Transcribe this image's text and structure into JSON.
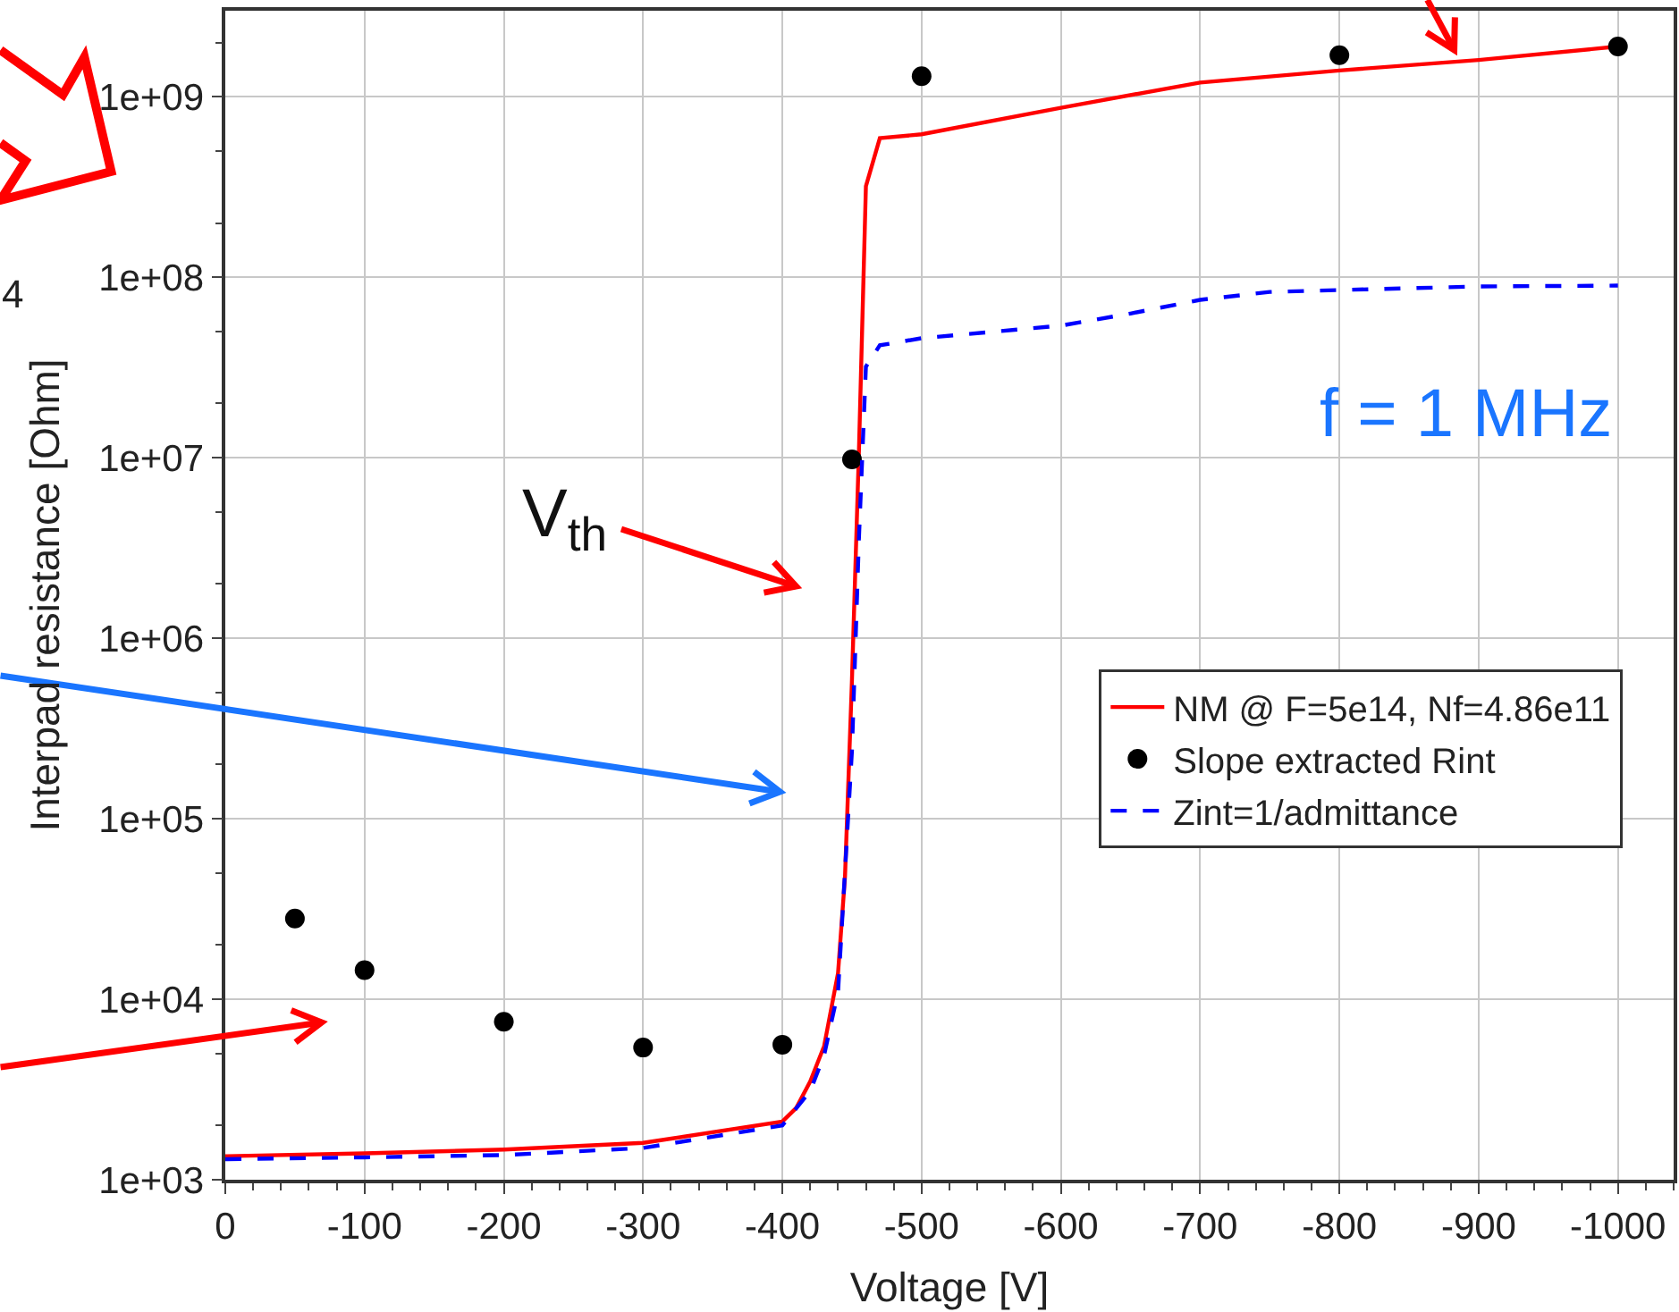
{
  "chart_data": {
    "type": "line",
    "xlabel": "Voltage [V]",
    "ylabel": "Interpad resistance [Ohm]",
    "xlim": [
      0,
      -1040
    ],
    "xticks": [
      0,
      -100,
      -200,
      -300,
      -400,
      -500,
      -600,
      -700,
      -800,
      -900,
      -1000
    ],
    "ylim": [
      1000,
      3000000000
    ],
    "log": "y",
    "yticks": [
      {
        "value": 1000,
        "label": "1e+03"
      },
      {
        "value": 10000,
        "label": "1e+04"
      },
      {
        "value": 100000,
        "label": "1e+05"
      },
      {
        "value": 1000000,
        "label": "1e+06"
      },
      {
        "value": 10000000,
        "label": "1e+07"
      },
      {
        "value": 100000000,
        "label": "1e+08"
      },
      {
        "value": 1000000000,
        "label": "1e+09"
      }
    ],
    "grid": true,
    "legend": "right",
    "annotations": [
      "f = 1 MHz",
      "V$_{th}$",
      "4"
    ],
    "series": [
      {
        "name": "NM @ F=5e14, Nf=4.86e11",
        "color": "#ff0000",
        "line_style": "solid",
        "marker": "none",
        "x": [
          0,
          -100,
          -200,
          -300,
          -400,
          -410,
          -420,
          -430,
          -440,
          -445,
          -450,
          -455,
          -460,
          -470,
          -500,
          -600,
          -700,
          -800,
          -900,
          -1000
        ],
        "values": [
          1350,
          1400,
          1470,
          1600,
          2100,
          2500,
          3500,
          5500,
          14000,
          48000,
          590000,
          11000000,
          320000000,
          590000000,
          620000000,
          870000000,
          1200000000,
          1400000000,
          1600000000,
          1900000000
        ]
      },
      {
        "name": "Slope extracted Rint",
        "type": "scatter",
        "color": "#000000",
        "marker": "circle",
        "x": [
          -50,
          -100,
          -200,
          -300,
          -400,
          -450,
          -500,
          -800,
          -1000
        ],
        "values": [
          28000,
          14500,
          7500,
          5400,
          5600,
          9800000,
          1300000000,
          1700000000,
          1900000000
        ]
      },
      {
        "name": "Zint=1/admittance",
        "color": "#0000ff",
        "line_style": "dashed",
        "marker": "none",
        "x": [
          0,
          -100,
          -200,
          -300,
          -400,
          -420,
          -430,
          -440,
          -450,
          -455,
          -460,
          -470,
          -500,
          -600,
          -650,
          -700,
          -750,
          -800,
          -900,
          -1000
        ],
        "values": [
          1300,
          1330,
          1370,
          1500,
          2000,
          3100,
          4900,
          11000,
          240000,
          3600000,
          32000000,
          42000000,
          46000000,
          54000000,
          63000000,
          75000000,
          83000000,
          85000000,
          89000000,
          90000000
        ]
      }
    ]
  }
}
